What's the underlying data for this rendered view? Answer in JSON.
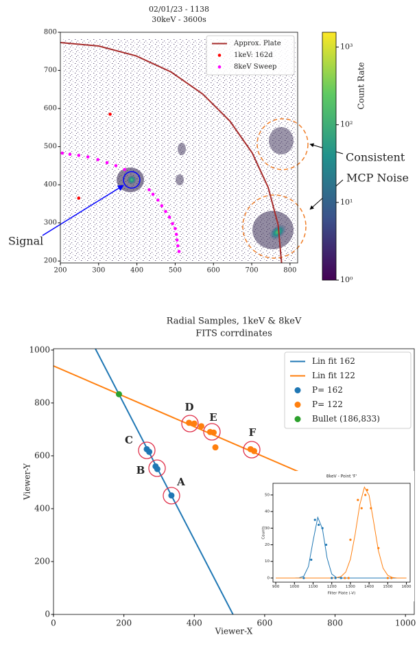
{
  "chart_data": [
    {
      "type": "scatter",
      "title": "02/01/23 - 1138",
      "subtitle": "30keV - 3600s",
      "xlim": [
        200,
        820
      ],
      "ylim": [
        195,
        800
      ],
      "xticks": [
        200,
        300,
        400,
        500,
        600,
        700,
        800
      ],
      "yticks": [
        200,
        300,
        400,
        500,
        600,
        700,
        800
      ],
      "legend": "upper right",
      "series": [
        {
          "name": "Approx. Plate",
          "color": "#a52a2a",
          "style": "line",
          "x": [
            200,
            300,
            398,
            489,
            572,
            643,
            701,
            743,
            769,
            778
          ],
          "values": [
            773,
            764,
            738,
            696,
            638,
            567,
            484,
            393,
            295,
            195
          ]
        },
        {
          "name": "1keV: 162d",
          "color": "#ff0000",
          "style": "marker",
          "x": [
            330,
            248
          ],
          "values": [
            585,
            365
          ]
        },
        {
          "name": "8keV Sweep",
          "color": "#ff00ff",
          "style": "marker",
          "x": [
            205,
            225,
            248,
            272,
            298,
            322,
            345,
            368,
            432,
            442,
            455,
            465,
            475,
            485,
            493,
            500,
            503,
            505,
            507,
            510
          ],
          "values": [
            483,
            480,
            477,
            473,
            466,
            458,
            450,
            440,
            387,
            375,
            360,
            345,
            330,
            315,
            298,
            285,
            270,
            255,
            240,
            225
          ]
        }
      ],
      "colorbar": {
        "label": "Count Rate",
        "scale": "log",
        "clim": [
          1,
          1550
        ],
        "ticks": [
          {
            "value": 1,
            "label": "10⁰"
          },
          {
            "value": 10,
            "label": "10¹"
          },
          {
            "value": 100,
            "label": "10²"
          },
          {
            "value": 1000,
            "label": "10³"
          }
        ]
      },
      "annotations": [
        {
          "text": "Signal",
          "color": "#0000ff"
        },
        {
          "text": "Consistent",
          "color": "#f07f2a"
        },
        {
          "text": "MCP Noise",
          "color": "#f07f2a"
        }
      ]
    },
    {
      "type": "scatter",
      "title": "Radial Samples, 1keV & 8keV",
      "subtitle": "FITS corrdinates",
      "xlabel": "Viewer-X",
      "ylabel": "Viewer-Y",
      "xlim": [
        0,
        1025
      ],
      "ylim": [
        0,
        1005
      ],
      "xticks": [
        0,
        200,
        400,
        600,
        800,
        1000
      ],
      "yticks": [
        0,
        200,
        400,
        600,
        800,
        1000
      ],
      "legend": "upper right",
      "series": [
        {
          "name": "Lin fit 162",
          "color": "#1f77b4",
          "style": "line",
          "x": [
            119,
            510
          ],
          "values": [
            1005,
            0
          ]
        },
        {
          "name": "Lin fit 122",
          "color": "#ff7f0e",
          "style": "line",
          "x": [
            0,
            1025
          ],
          "values": [
            940,
            351
          ]
        },
        {
          "name": "P= 162",
          "color": "#1f77b4",
          "style": "marker",
          "x": [
            265,
            272,
            290,
            295,
            335
          ],
          "values": [
            625,
            615,
            560,
            550,
            450
          ]
        },
        {
          "name": "P= 122",
          "color": "#ff7f0e",
          "style": "marker",
          "x": [
            385,
            400,
            420,
            445,
            455,
            460,
            560,
            570
          ],
          "values": [
            725,
            722,
            712,
            690,
            688,
            632,
            625,
            618
          ]
        },
        {
          "name": "Bullet (186,833)",
          "color": "#2ca02c",
          "style": "marker",
          "x": [
            186
          ],
          "values": [
            833
          ]
        }
      ],
      "annotations": [
        {
          "text": "A",
          "color": "#000000"
        },
        {
          "text": "B",
          "color": "#000000"
        },
        {
          "text": "C",
          "color": "#000000"
        },
        {
          "text": "D",
          "color": "#000000"
        },
        {
          "text": "E",
          "color": "#000000"
        },
        {
          "text": "F",
          "color": "#000000"
        }
      ]
    },
    {
      "type": "line",
      "title": "8keV - Point 'F'",
      "xlabel": "Filter Plate (-V)",
      "ylabel": "Counts",
      "xlim": [
        885,
        1620
      ],
      "ylim": [
        -2.5,
        57
      ],
      "xticks": [
        900,
        1000,
        1100,
        1200,
        1300,
        1400,
        1500,
        1600
      ],
      "yticks": [
        0,
        10,
        20,
        30,
        40,
        50
      ],
      "series": [
        {
          "color": "#1f77b4",
          "style": "line",
          "x": [
            900,
            925,
            950,
            975,
            1000,
            1025,
            1050,
            1075,
            1100,
            1125,
            1150,
            1175,
            1200,
            1225,
            1250,
            1275,
            1300,
            1325,
            1350,
            1375,
            1400,
            1425,
            1450,
            1475,
            1500,
            1525,
            1550,
            1575,
            1600
          ],
          "values": [
            0,
            0,
            0,
            0,
            0,
            0.1,
            1.1,
            6.9,
            22.4,
            36.5,
            29.6,
            12.0,
            2.4,
            0.3,
            0,
            0,
            0,
            0,
            0,
            0,
            0,
            0,
            0,
            0,
            0,
            0,
            0,
            0,
            0
          ]
        },
        {
          "color": "#ff7f0e",
          "style": "line",
          "x": [
            900,
            925,
            950,
            975,
            1000,
            1025,
            1050,
            1075,
            1100,
            1125,
            1150,
            1175,
            1200,
            1225,
            1250,
            1275,
            1300,
            1325,
            1350,
            1375,
            1400,
            1425,
            1450,
            1475,
            1500,
            1525,
            1550,
            1575,
            1600
          ],
          "values": [
            0,
            0,
            0,
            0,
            0,
            0,
            0,
            0,
            0,
            0,
            0,
            0,
            0,
            0.2,
            0.9,
            3.6,
            11.3,
            26.1,
            44.0,
            54.7,
            49.8,
            33.4,
            16.4,
            5.9,
            1.6,
            0.3,
            0,
            0,
            0
          ]
        },
        {
          "color": "#1f77b4",
          "style": "marker",
          "x": [
            1050,
            1090,
            1110,
            1130,
            1150,
            1170,
            1200,
            1220,
            1250
          ],
          "values": [
            0,
            11,
            35,
            32,
            30,
            20,
            0,
            0,
            0
          ]
        },
        {
          "color": "#ff7f0e",
          "style": "marker",
          "x": [
            1270,
            1290,
            1300,
            1340,
            1360,
            1380,
            1390,
            1410,
            1450,
            1500,
            1520
          ],
          "values": [
            0,
            0,
            23,
            47,
            42,
            50,
            53,
            42,
            18,
            0,
            0
          ]
        }
      ]
    }
  ]
}
